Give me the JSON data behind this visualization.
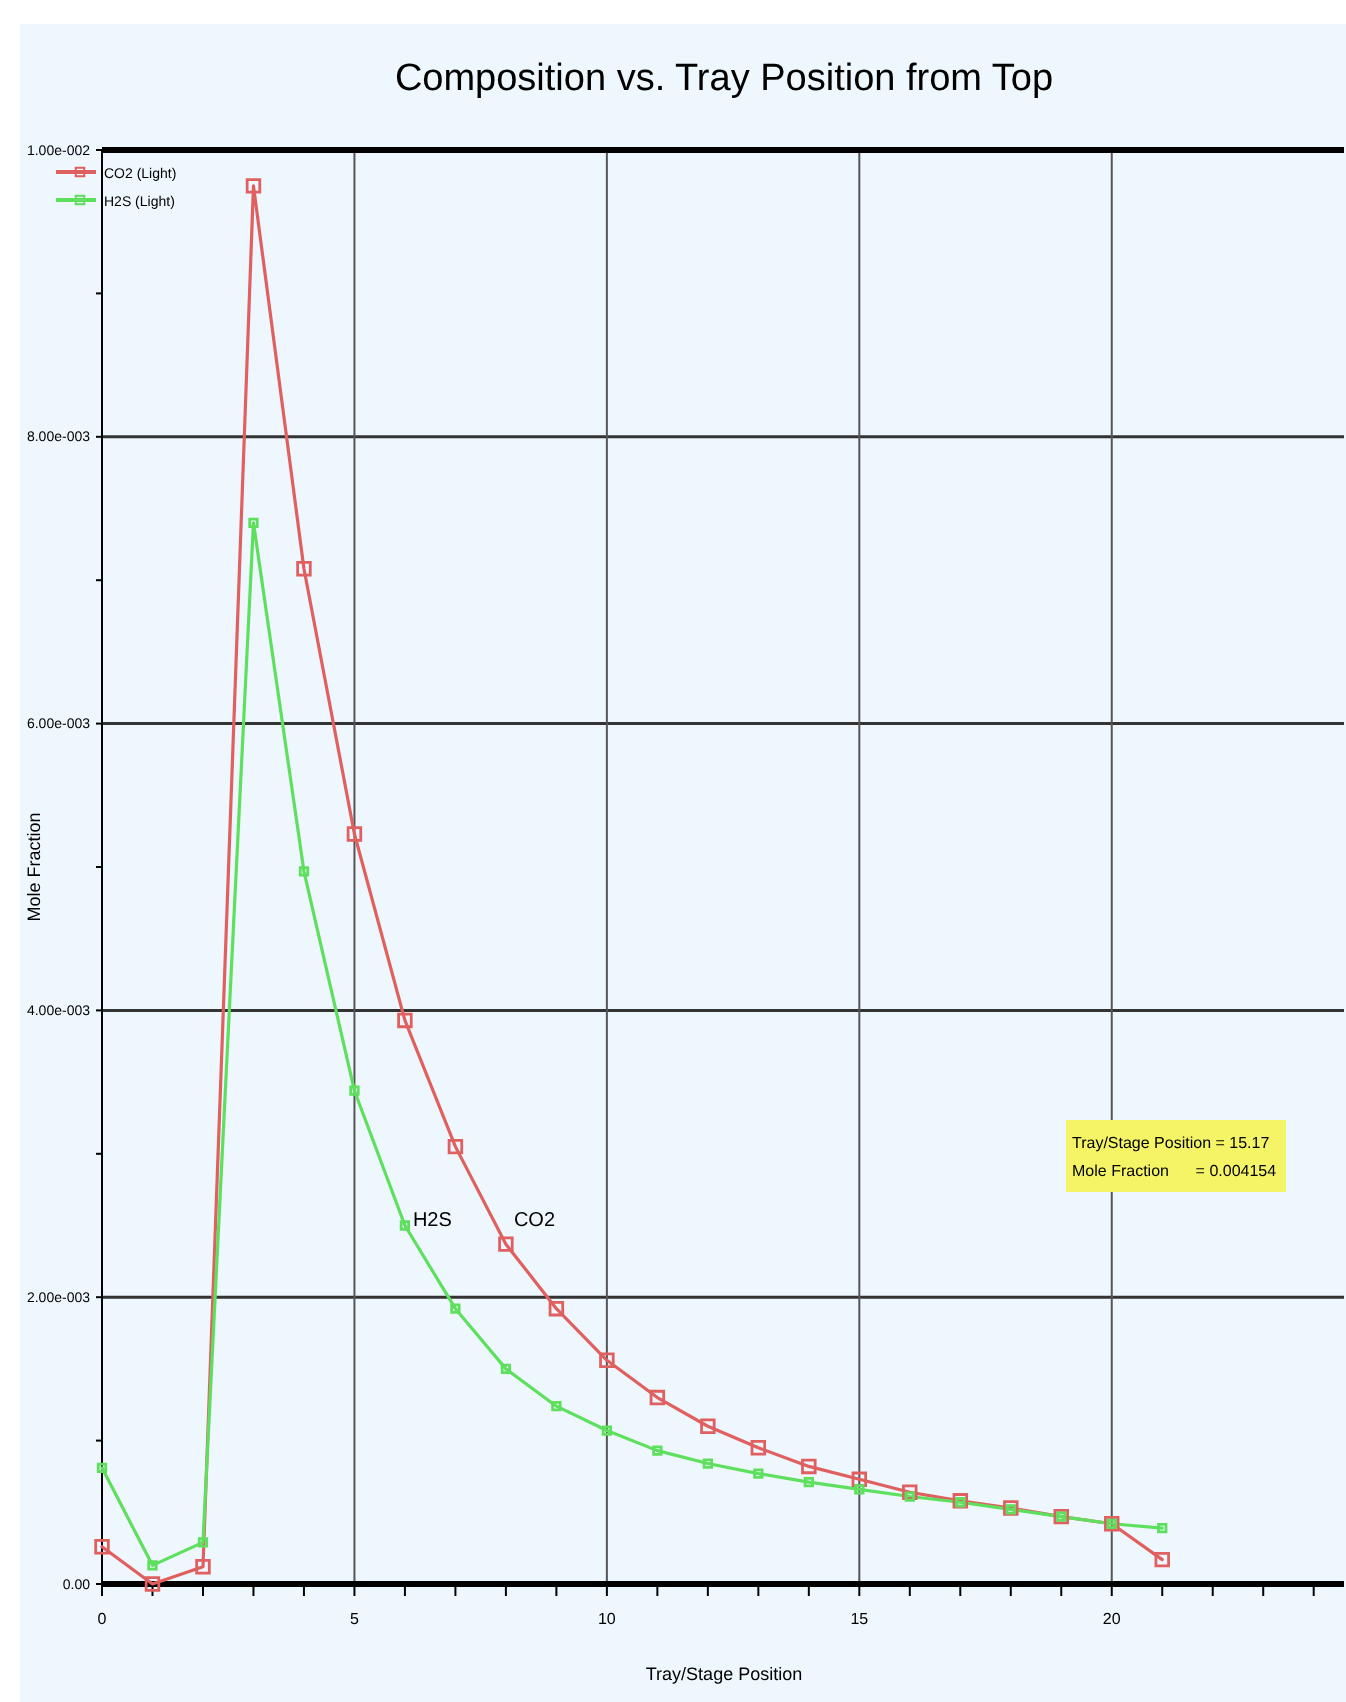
{
  "chart_data": {
    "type": "line",
    "title": "Composition vs. Tray Position from Top",
    "xlabel": "Tray/Stage Position",
    "ylabel": "Mole Fraction",
    "x": [
      0,
      1,
      2,
      3,
      4,
      5,
      6,
      7,
      8,
      9,
      10,
      11,
      12,
      13,
      14,
      15,
      16,
      17,
      18,
      19,
      20,
      21
    ],
    "series": [
      {
        "name": "CO2 (Light)",
        "color": "#e06060",
        "values": [
          0.00026,
          0,
          0.00012,
          0.00975,
          0.00708,
          0.00523,
          0.00393,
          0.00305,
          0.00237,
          0.00192,
          0.00156,
          0.0013,
          0.0011,
          0.00095,
          0.00082,
          0.00073,
          0.00064,
          0.00058,
          0.00053,
          0.00047,
          0.00042,
          0.00017
        ]
      },
      {
        "name": "H2S (Light)",
        "color": "#5ee05e",
        "values": [
          0.00081,
          0.00013,
          0.00029,
          0.0074,
          0.00497,
          0.00344,
          0.0025,
          0.00192,
          0.0015,
          0.00124,
          0.00107,
          0.00093,
          0.00084,
          0.00077,
          0.00071,
          0.00066,
          0.00061,
          0.00057,
          0.00052,
          0.00047,
          0.00042,
          0.00039
        ]
      }
    ],
    "xlim": [
      0,
      24.6
    ],
    "xticks": [
      0,
      {
        "value": 1,
        "label": null
      },
      {
        "value": 2,
        "label": null
      },
      {
        "value": 3,
        "label": null
      },
      {
        "value": 4,
        "label": null
      },
      5,
      {
        "value": 6,
        "label": null
      },
      {
        "value": 7,
        "label": null
      },
      {
        "value": 8,
        "label": null
      },
      {
        "value": 9,
        "label": null
      },
      10,
      {
        "value": 11,
        "label": null
      },
      {
        "value": 12,
        "label": null
      },
      {
        "value": 13,
        "label": null
      },
      {
        "value": 14,
        "label": null
      },
      15,
      {
        "value": 16,
        "label": null
      },
      {
        "value": 17,
        "label": null
      },
      {
        "value": 18,
        "label": null
      },
      {
        "value": 19,
        "label": null
      },
      20,
      {
        "value": 21,
        "label": null
      },
      {
        "value": 22,
        "label": null
      },
      {
        "value": 23,
        "label": null
      },
      {
        "value": 24,
        "label": null
      }
    ],
    "ylim": [
      0,
      0.01
    ],
    "yticks": [
      {
        "value": 0,
        "label": "0.00"
      },
      {
        "value": 0.001,
        "label": null
      },
      {
        "value": 0.002,
        "label": "2.00e-003"
      },
      {
        "value": 0.003,
        "label": null
      },
      {
        "value": 0.004,
        "label": "4.00e-003"
      },
      {
        "value": 0.005,
        "label": null
      },
      {
        "value": 0.006,
        "label": "6.00e-003"
      },
      {
        "value": 0.007,
        "label": null
      },
      {
        "value": 0.008,
        "label": "8.00e-003"
      },
      {
        "value": 0.009,
        "label": null
      },
      {
        "value": 0.01,
        "label": "1.00e-002"
      }
    ],
    "grid": true,
    "legend": "top left",
    "marker": "square",
    "line_style": "solid",
    "annotations": [
      {
        "text": "H2S",
        "x": 6,
        "y": 0.0025
      },
      {
        "text": "CO2",
        "x": 8,
        "y": 0.0025
      },
      "Tray/Stage Position = 15.17\nMole Fraction      = 0.004154"
    ]
  }
}
